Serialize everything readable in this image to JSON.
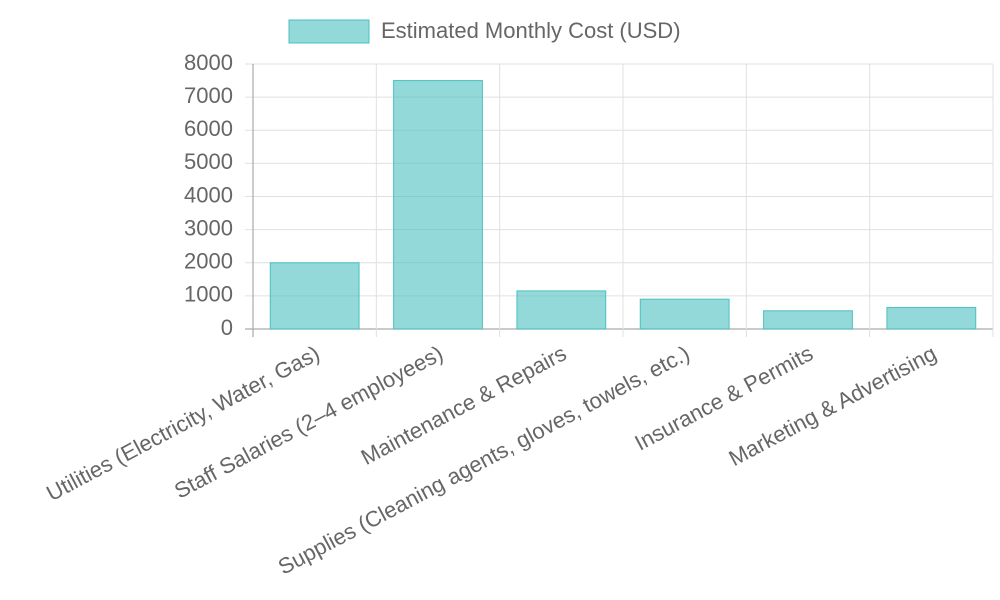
{
  "chart_data": {
    "type": "bar",
    "categories": [
      "Utilities (Electricity, Water, Gas)",
      "Staff Salaries (2–4 employees)",
      "Maintenance & Repairs",
      "Supplies (Cleaning agents, gloves, towels, etc.)",
      "Insurance & Permits",
      "Marketing & Advertising"
    ],
    "series": [
      {
        "name": "Estimated Monthly Cost (USD)",
        "color": "#4bc0c0",
        "values": [
          2000,
          7500,
          1150,
          900,
          550,
          650
        ]
      }
    ],
    "ylim": [
      0,
      8000
    ],
    "yticks": [
      0,
      1000,
      2000,
      3000,
      4000,
      5000,
      6000,
      7000,
      8000
    ],
    "grid": true,
    "legend": "top"
  }
}
